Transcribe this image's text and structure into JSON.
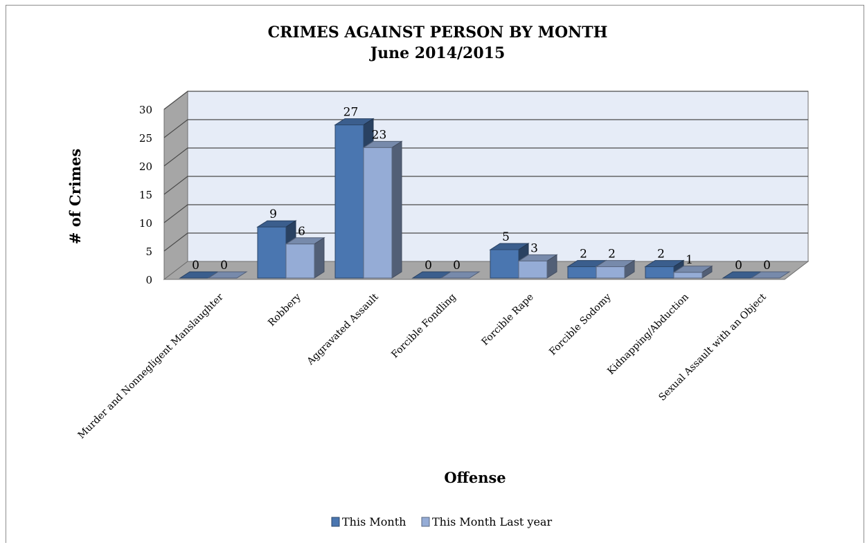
{
  "chart_data": {
    "type": "bar",
    "title": "CRIMES AGAINST PERSON BY MONTH",
    "subtitle": "June 2014/2015",
    "xlabel": "Offense",
    "ylabel": "# of Crimes",
    "ylim": [
      0,
      30
    ],
    "yticks": [
      0,
      5,
      10,
      15,
      20,
      25,
      30
    ],
    "grid": true,
    "legend_position": "bottom",
    "categories": [
      "Murder and Nonnegligent Manslaughter",
      "Robbery",
      "Aggravated Assault",
      "Forcible Fondling",
      "Forcible Rape",
      "Forcible Sodomy",
      "Kidnapping/Abduction",
      "Sexual Assault with an Object"
    ],
    "series": [
      {
        "name": "This Month",
        "values": [
          0,
          9,
          27,
          0,
          5,
          2,
          2,
          0
        ],
        "color": "#4a76b0"
      },
      {
        "name": "This Month Last year",
        "values": [
          0,
          6,
          23,
          0,
          3,
          2,
          1,
          0
        ],
        "color": "#95acd6"
      }
    ],
    "colors": {
      "back_wall": "#e6ecf7",
      "side_wall": "#a6a6a6",
      "floor": "#a6a6a6",
      "gridline": "#4a4a4a"
    }
  }
}
